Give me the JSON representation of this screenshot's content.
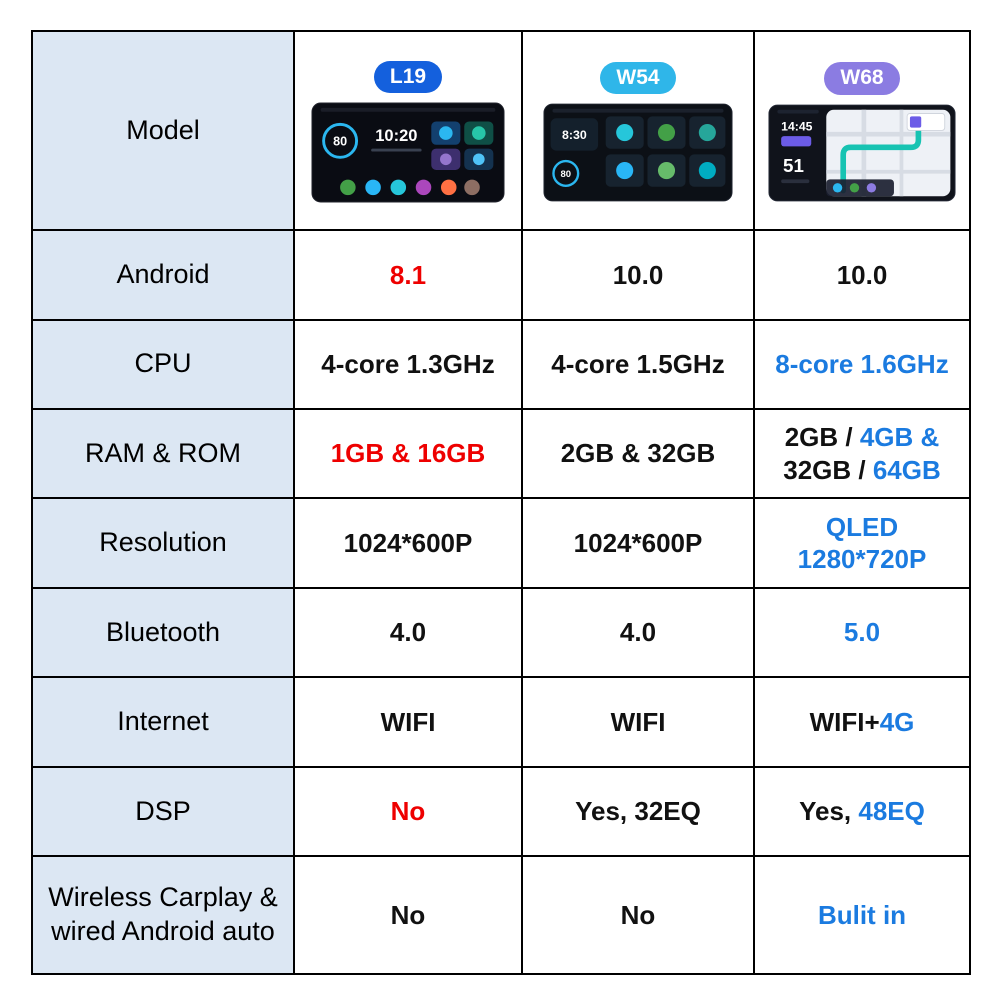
{
  "colors": {
    "red": "#ee0000",
    "blue": "#1b7be0",
    "black": "#111111",
    "label_bg": "#dce7f3"
  },
  "header": {
    "row_label": "Model",
    "products": [
      {
        "badge": "L19",
        "badge_color": "#1460dd",
        "screen_clock": "10:20",
        "screen_gauge": "80"
      },
      {
        "badge": "W54",
        "badge_color": "#2fb6e9",
        "screen_clock": "8:30",
        "screen_gauge": "80"
      },
      {
        "badge": "W68",
        "badge_color": "#8b7ce2",
        "screen_clock": "14:45",
        "screen_speed": "51"
      }
    ]
  },
  "rows": [
    {
      "label": "Android",
      "cells": [
        {
          "lines": [
            [
              {
                "t": "8.1",
                "c": "red"
              }
            ]
          ]
        },
        {
          "lines": [
            [
              {
                "t": "10.0"
              }
            ]
          ]
        },
        {
          "lines": [
            [
              {
                "t": "10.0"
              }
            ]
          ]
        }
      ]
    },
    {
      "label": "CPU",
      "cells": [
        {
          "lines": [
            [
              {
                "t": "4-core 1.3GHz"
              }
            ]
          ]
        },
        {
          "lines": [
            [
              {
                "t": "4-core 1.5GHz"
              }
            ]
          ]
        },
        {
          "lines": [
            [
              {
                "t": "8-core 1.6GHz",
                "c": "blue"
              }
            ]
          ]
        }
      ]
    },
    {
      "label": "RAM & ROM",
      "cells": [
        {
          "lines": [
            [
              {
                "t": "1GB & 16GB",
                "c": "red"
              }
            ]
          ]
        },
        {
          "lines": [
            [
              {
                "t": "2GB & 32GB"
              }
            ]
          ]
        },
        {
          "lines": [
            [
              {
                "t": "2GB / "
              },
              {
                "t": "4GB &",
                "c": "blue"
              }
            ],
            [
              {
                "t": "32GB / "
              },
              {
                "t": "64GB",
                "c": "blue"
              }
            ]
          ]
        }
      ]
    },
    {
      "label": "Resolution",
      "cells": [
        {
          "lines": [
            [
              {
                "t": "1024*600P"
              }
            ]
          ]
        },
        {
          "lines": [
            [
              {
                "t": "1024*600P"
              }
            ]
          ]
        },
        {
          "lines": [
            [
              {
                "t": "QLED",
                "c": "blue"
              }
            ],
            [
              {
                "t": "1280*720P",
                "c": "blue"
              }
            ]
          ]
        }
      ]
    },
    {
      "label": "Bluetooth",
      "cells": [
        {
          "lines": [
            [
              {
                "t": "4.0"
              }
            ]
          ]
        },
        {
          "lines": [
            [
              {
                "t": "4.0"
              }
            ]
          ]
        },
        {
          "lines": [
            [
              {
                "t": "5.0",
                "c": "blue"
              }
            ]
          ]
        }
      ]
    },
    {
      "label": "Internet",
      "cells": [
        {
          "lines": [
            [
              {
                "t": "WIFI"
              }
            ]
          ]
        },
        {
          "lines": [
            [
              {
                "t": "WIFI"
              }
            ]
          ]
        },
        {
          "lines": [
            [
              {
                "t": "WIFI+"
              },
              {
                "t": "4G",
                "c": "blue"
              }
            ]
          ]
        }
      ]
    },
    {
      "label": "DSP",
      "cells": [
        {
          "lines": [
            [
              {
                "t": "No",
                "c": "red"
              }
            ]
          ]
        },
        {
          "lines": [
            [
              {
                "t": "Yes, 32EQ"
              }
            ]
          ]
        },
        {
          "lines": [
            [
              {
                "t": "Yes, "
              },
              {
                "t": "48EQ",
                "c": "blue"
              }
            ]
          ]
        }
      ]
    },
    {
      "label": "Wireless Carplay &\nwired Android auto",
      "cells": [
        {
          "lines": [
            [
              {
                "t": "No"
              }
            ]
          ]
        },
        {
          "lines": [
            [
              {
                "t": "No"
              }
            ]
          ]
        },
        {
          "lines": [
            [
              {
                "t": "Bulit in",
                "c": "blue"
              }
            ]
          ]
        }
      ]
    }
  ],
  "chart_data": {
    "type": "table",
    "columns": [
      "Model",
      "L19",
      "W54",
      "W68"
    ],
    "rows": [
      [
        "Android",
        "8.1",
        "10.0",
        "10.0"
      ],
      [
        "CPU",
        "4-core 1.3GHz",
        "4-core 1.5GHz",
        "8-core 1.6GHz"
      ],
      [
        "RAM & ROM",
        "1GB & 16GB",
        "2GB & 32GB",
        "2GB / 4GB & 32GB / 64GB"
      ],
      [
        "Resolution",
        "1024*600P",
        "1024*600P",
        "QLED 1280*720P"
      ],
      [
        "Bluetooth",
        "4.0",
        "4.0",
        "5.0"
      ],
      [
        "Internet",
        "WIFI",
        "WIFI",
        "WIFI+4G"
      ],
      [
        "DSP",
        "No",
        "Yes, 32EQ",
        "Yes, 48EQ"
      ],
      [
        "Wireless Carplay & wired Android auto",
        "No",
        "No",
        "Bulit in"
      ]
    ]
  }
}
